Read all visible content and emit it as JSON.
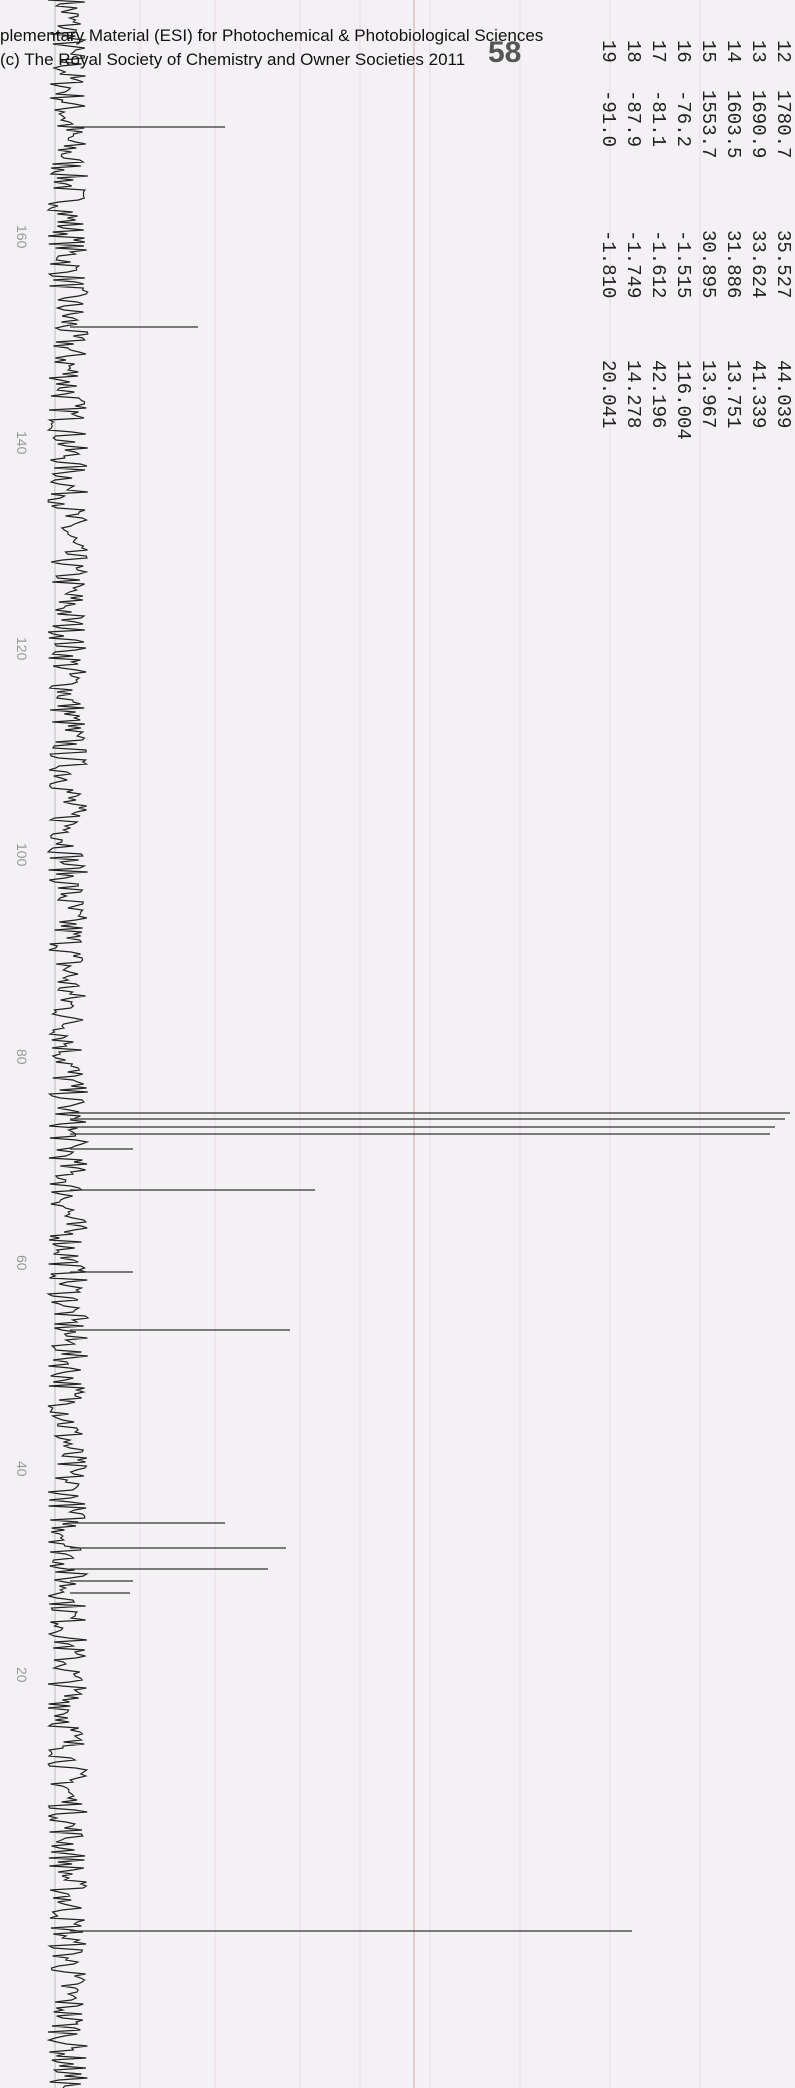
{
  "header": {
    "line1": "plementary Material (ESI) for Photochemical & Photobiological Sciences",
    "line2": "(c) The Royal Society of Chemistry and Owner Societies 2011",
    "page_number": "58"
  },
  "peak_table": {
    "rows": [
      [
        "12",
        "1780.7",
        "35.527",
        "44.039"
      ],
      [
        "13",
        "1690.9",
        "33.624",
        "41.339"
      ],
      [
        "14",
        "1603.5",
        "31.886",
        "13.751"
      ],
      [
        "15",
        "1553.7",
        "30.895",
        "13.967"
      ],
      [
        "16",
        "-76.2",
        "-1.515",
        "116.004"
      ],
      [
        "17",
        "-81.1",
        "-1.612",
        "42.196"
      ],
      [
        "18",
        "-87.9",
        "-1.749",
        "14.278"
      ],
      [
        "19",
        "-91.0",
        "-1.810",
        "20.041"
      ]
    ]
  },
  "axis": {
    "labels": [
      "160",
      "140",
      "120",
      "100",
      "80",
      "60",
      "40",
      "20"
    ]
  }
}
